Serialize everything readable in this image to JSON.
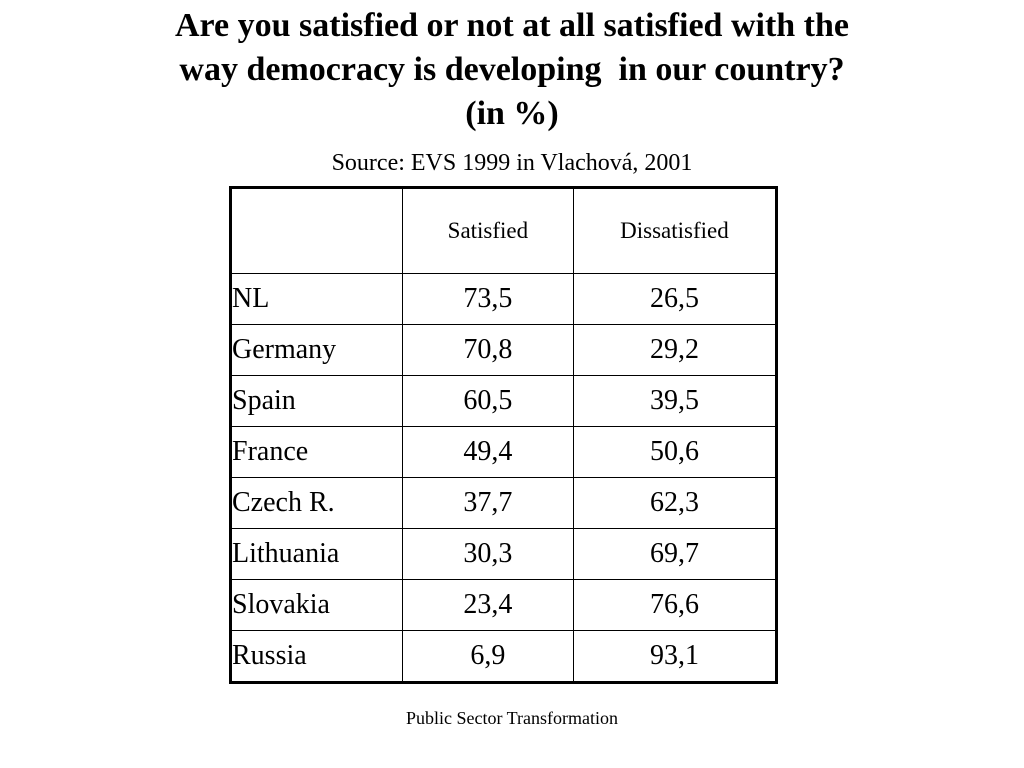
{
  "title": {
    "line1": "Are you satisfied or not at all satisfied with the",
    "line2": "way democracy is developing  in our country?",
    "line3": "(in %)"
  },
  "source": "Source: EVS 1999 in Vlachová, 2001",
  "table": {
    "headers": [
      "",
      "Satisfied",
      "Dissatisfied"
    ],
    "rows": [
      {
        "country": "NL",
        "satisfied": "73,5",
        "dissatisfied": "26,5"
      },
      {
        "country": "Germany",
        "satisfied": "70,8",
        "dissatisfied": "29,2"
      },
      {
        "country": "Spain",
        "satisfied": "60,5",
        "dissatisfied": "39,5"
      },
      {
        "country": "France",
        "satisfied": "49,4",
        "dissatisfied": "50,6"
      },
      {
        "country": "Czech R.",
        "satisfied": "37,7",
        "dissatisfied": "62,3"
      },
      {
        "country": "Lithuania",
        "satisfied": "30,3",
        "dissatisfied": "69,7"
      },
      {
        "country": "Slovakia",
        "satisfied": "23,4",
        "dissatisfied": "76,6"
      },
      {
        "country": "Russia",
        "satisfied": "6,9",
        "dissatisfied": "93,1"
      }
    ]
  },
  "footer": "Public Sector Transformation"
}
